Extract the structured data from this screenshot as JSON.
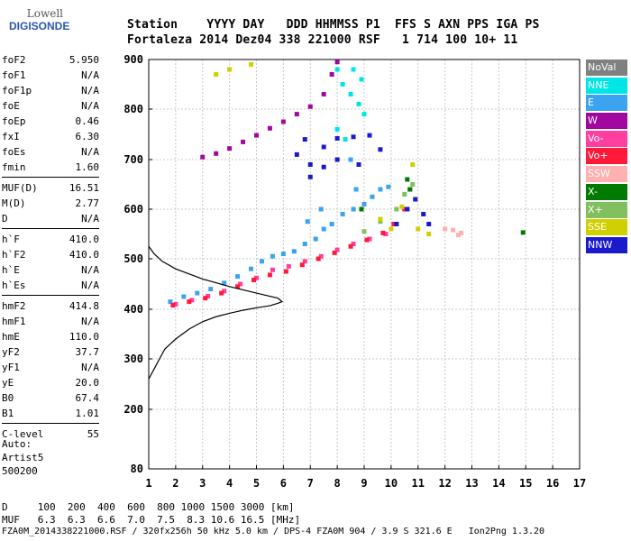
{
  "logo": {
    "line1": "Lowell",
    "line2": "DIGISONDE"
  },
  "header": {
    "line1": "Station    YYYY DAY   DDD HHMMSS P1  FFS S AXN PPS IGA PS",
    "line2": "Fortaleza 2014 Dez04 338 221000 RSF   1 714 100 10+ 11"
  },
  "params": [
    {
      "label": "foF2",
      "value": "5.950"
    },
    {
      "label": "foF1",
      "value": "N/A"
    },
    {
      "label": "foF1p",
      "value": "N/A"
    },
    {
      "label": "foE",
      "value": "N/A"
    },
    {
      "label": "foEp",
      "value": "0.46"
    },
    {
      "label": "fxI",
      "value": "6.30"
    },
    {
      "label": "foEs",
      "value": "N/A"
    },
    {
      "label": "fmin",
      "value": "1.60"
    },
    {
      "sep": true
    },
    {
      "label": "MUF(D)",
      "value": "16.51"
    },
    {
      "label": "M(D)",
      "value": "2.77"
    },
    {
      "label": "D",
      "value": "N/A"
    },
    {
      "sep": true
    },
    {
      "label": "h`F",
      "value": "410.0"
    },
    {
      "label": "h`F2",
      "value": "410.0"
    },
    {
      "label": "h`E",
      "value": "N/A"
    },
    {
      "label": "h`Es",
      "value": "N/A"
    },
    {
      "sep": true
    },
    {
      "label": "hmF2",
      "value": "414.8"
    },
    {
      "label": "hmF1",
      "value": "N/A"
    },
    {
      "label": "hmE",
      "value": "110.0"
    },
    {
      "label": "yF2",
      "value": "37.7"
    },
    {
      "label": "yF1",
      "value": "N/A"
    },
    {
      "label": "yE",
      "value": "20.0"
    },
    {
      "label": "B0",
      "value": "67.4"
    },
    {
      "label": "B1",
      "value": "1.01"
    },
    {
      "sep": true
    },
    {
      "label": "C-level",
      "value": "55"
    }
  ],
  "auto": {
    "line1": "Auto:",
    "line2": "Artist5",
    "line3": "500200"
  },
  "footer": {
    "line1": "D     100  200  400  600  800 1000 1500 3000 [km]",
    "line2": "MUF   6.3  6.3  6.6  7.0  7.5  8.3 10.6 16.5 [MHz]",
    "line3": "FZA0M_2014338221000.RSF / 320fx256h 50 kHz 5.0 km / DPS-4 FZA0M 904 / 3.9 S 321.6 E   Ion2Png 1.3.20"
  },
  "legend": [
    {
      "label": "NoVal",
      "color": "#808080"
    },
    {
      "label": "NNE",
      "color": "#00e6e6"
    },
    {
      "label": "E",
      "color": "#3ba3f0"
    },
    {
      "label": "W",
      "color": "#a0089f"
    },
    {
      "label": "Vo-",
      "color": "#ff3fa0"
    },
    {
      "label": "Vo+",
      "color": "#ff1a3a"
    },
    {
      "label": "SSW",
      "color": "#ffb0b0"
    },
    {
      "label": "X-",
      "color": "#007a00"
    },
    {
      "label": "X+",
      "color": "#80c060"
    },
    {
      "label": "SSE",
      "color": "#d0d000"
    },
    {
      "label": "NNW",
      "color": "#1a1acc"
    }
  ],
  "chart_data": {
    "type": "scatter",
    "title": "",
    "xlabel": "",
    "ylabel": "",
    "xlim": [
      1,
      17
    ],
    "ylim": [
      80,
      900
    ],
    "xticks": [
      1,
      2,
      3,
      4,
      5,
      6,
      7,
      8,
      9,
      10,
      11,
      12,
      13,
      14,
      15,
      16,
      17
    ],
    "yticks": [
      80,
      200,
      300,
      400,
      500,
      600,
      700,
      800,
      900
    ],
    "grid": true,
    "series": [
      {
        "name": "E",
        "color": "#3ba3f0",
        "points": [
          [
            1.8,
            415
          ],
          [
            2.3,
            425
          ],
          [
            2.8,
            432
          ],
          [
            3.3,
            440
          ],
          [
            3.8,
            452
          ],
          [
            4.3,
            465
          ],
          [
            4.8,
            480
          ],
          [
            5.2,
            495
          ],
          [
            5.6,
            505
          ],
          [
            6.0,
            510
          ],
          [
            6.4,
            515
          ],
          [
            6.8,
            530
          ],
          [
            7.2,
            540
          ],
          [
            7.5,
            560
          ],
          [
            7.8,
            570
          ],
          [
            8.2,
            590
          ],
          [
            8.6,
            600
          ],
          [
            9.0,
            610
          ],
          [
            9.3,
            625
          ],
          [
            9.6,
            640
          ],
          [
            9.9,
            645
          ],
          [
            8.5,
            700
          ],
          [
            8.7,
            640
          ],
          [
            6.9,
            575
          ],
          [
            7.4,
            600
          ]
        ]
      },
      {
        "name": "NNE",
        "color": "#00e6e6",
        "points": [
          [
            8.0,
            880
          ],
          [
            8.2,
            850
          ],
          [
            8.5,
            830
          ],
          [
            8.8,
            810
          ],
          [
            9.0,
            790
          ],
          [
            8.0,
            760
          ],
          [
            8.3,
            740
          ],
          [
            8.6,
            880
          ],
          [
            8.9,
            860
          ]
        ]
      },
      {
        "name": "W",
        "color": "#a0089f",
        "points": [
          [
            3.0,
            705
          ],
          [
            3.5,
            712
          ],
          [
            4.0,
            722
          ],
          [
            4.5,
            735
          ],
          [
            5.0,
            748
          ],
          [
            5.5,
            762
          ],
          [
            6.0,
            775
          ],
          [
            6.5,
            790
          ],
          [
            7.0,
            805
          ],
          [
            7.5,
            830
          ],
          [
            7.8,
            870
          ],
          [
            8.0,
            895
          ]
        ]
      },
      {
        "name": "Vo-",
        "color": "#ff3fa0",
        "points": [
          [
            2.0,
            410
          ],
          [
            2.6,
            418
          ],
          [
            3.2,
            426
          ],
          [
            3.8,
            436
          ],
          [
            4.4,
            450
          ],
          [
            5.0,
            462
          ],
          [
            5.6,
            478
          ],
          [
            6.2,
            485
          ],
          [
            6.8,
            495
          ],
          [
            7.4,
            505
          ],
          [
            8.0,
            518
          ],
          [
            8.6,
            530
          ],
          [
            9.2,
            540
          ],
          [
            9.8,
            550
          ],
          [
            10.2,
            570
          ],
          [
            10.6,
            600
          ]
        ]
      },
      {
        "name": "Vo+",
        "color": "#ff1a3a",
        "points": [
          [
            1.9,
            408
          ],
          [
            2.5,
            415
          ],
          [
            3.1,
            422
          ],
          [
            3.7,
            432
          ],
          [
            4.3,
            445
          ],
          [
            4.9,
            458
          ],
          [
            5.5,
            468
          ],
          [
            6.1,
            475
          ],
          [
            6.7,
            488
          ],
          [
            7.3,
            500
          ],
          [
            7.9,
            512
          ],
          [
            8.5,
            525
          ],
          [
            9.1,
            538
          ],
          [
            9.7,
            552
          ],
          [
            10.1,
            570
          ],
          [
            10.5,
            600
          ],
          [
            10.7,
            640
          ]
        ]
      },
      {
        "name": "SSW",
        "color": "#ffb0b0",
        "points": [
          [
            12.0,
            560
          ],
          [
            12.3,
            558
          ],
          [
            12.6,
            552
          ],
          [
            12.5,
            548
          ]
        ]
      },
      {
        "name": "X-",
        "color": "#007a00",
        "points": [
          [
            14.9,
            553
          ],
          [
            10.7,
            640
          ],
          [
            8.9,
            600
          ],
          [
            10.6,
            660
          ]
        ]
      },
      {
        "name": "X+",
        "color": "#80c060",
        "points": [
          [
            10.2,
            600
          ],
          [
            10.5,
            630
          ],
          [
            10.8,
            650
          ],
          [
            9.0,
            555
          ],
          [
            9.6,
            575
          ]
        ]
      },
      {
        "name": "SSE",
        "color": "#d0d000",
        "points": [
          [
            3.5,
            870
          ],
          [
            4.0,
            880
          ],
          [
            4.8,
            890
          ],
          [
            9.6,
            580
          ],
          [
            10.0,
            560
          ],
          [
            10.4,
            605
          ],
          [
            10.8,
            690
          ],
          [
            11.0,
            560
          ],
          [
            11.4,
            550
          ]
        ]
      },
      {
        "name": "NNW",
        "color": "#1a1acc",
        "points": [
          [
            7.0,
            665
          ],
          [
            7.5,
            685
          ],
          [
            8.0,
            700
          ],
          [
            7.5,
            725
          ],
          [
            8.0,
            742
          ],
          [
            8.6,
            745
          ],
          [
            9.2,
            748
          ],
          [
            8.8,
            690
          ],
          [
            9.6,
            720
          ],
          [
            10.2,
            570
          ],
          [
            10.6,
            600
          ],
          [
            10.9,
            620
          ],
          [
            11.2,
            590
          ],
          [
            11.4,
            570
          ],
          [
            6.8,
            740
          ],
          [
            6.5,
            710
          ],
          [
            7.0,
            690
          ]
        ]
      }
    ],
    "profile": [
      [
        1.0,
        260
      ],
      [
        1.2,
        280
      ],
      [
        1.4,
        300
      ],
      [
        1.6,
        320
      ],
      [
        2.0,
        340
      ],
      [
        2.5,
        360
      ],
      [
        3.0,
        375
      ],
      [
        3.5,
        385
      ],
      [
        4.0,
        392
      ],
      [
        4.5,
        398
      ],
      [
        5.0,
        403
      ],
      [
        5.5,
        407
      ],
      [
        5.8,
        412
      ],
      [
        5.95,
        415
      ],
      [
        5.8,
        422
      ],
      [
        5.0,
        432
      ],
      [
        4.0,
        445
      ],
      [
        3.0,
        460
      ],
      [
        2.0,
        480
      ],
      [
        1.5,
        495
      ],
      [
        1.2,
        510
      ],
      [
        1.0,
        525
      ]
    ]
  }
}
